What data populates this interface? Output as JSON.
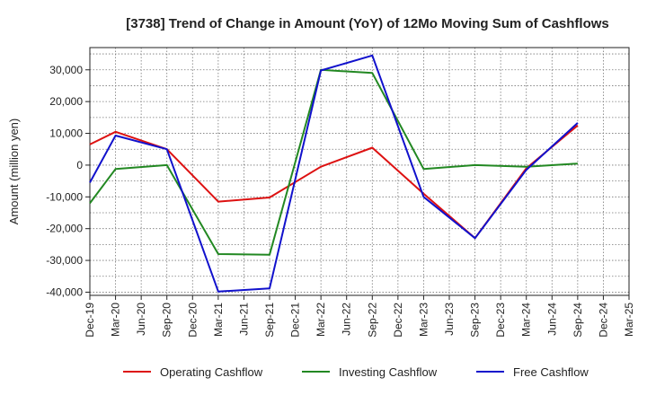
{
  "chart_data": {
    "type": "line",
    "title": "[3738]  Trend of Change in Amount (YoY) of 12Mo Moving Sum of Cashflows",
    "xlabel": "",
    "ylabel": "Amount (million yen)",
    "categories": [
      "Dec-19",
      "Mar-20",
      "Jun-20",
      "Sep-20",
      "Dec-20",
      "Mar-21",
      "Jun-21",
      "Sep-21",
      "Dec-21",
      "Mar-22",
      "Jun-22",
      "Sep-22",
      "Dec-22",
      "Mar-23",
      "Jun-23",
      "Sep-23",
      "Dec-23",
      "Mar-24",
      "Jun-24",
      "Sep-24",
      "Dec-24",
      "Mar-25"
    ],
    "ylim": [
      -41000,
      37000
    ],
    "yticks": [
      30000,
      20000,
      10000,
      0,
      -10000,
      -20000,
      -30000,
      -40000
    ],
    "ytick_labels": [
      "30,000",
      "20,000",
      "10,000",
      "0",
      "-10,000",
      "-20,000",
      "-30,000",
      "-40,000"
    ],
    "grid": true,
    "legend_position": "bottom",
    "series": [
      {
        "name": "Operating Cashflow",
        "color": "#dd1111",
        "values": [
          6500,
          10500,
          null,
          5000,
          null,
          -11500,
          null,
          -10200,
          null,
          -500,
          null,
          5500,
          null,
          -9000,
          null,
          -23000,
          null,
          -1000,
          null,
          12500,
          null,
          null
        ]
      },
      {
        "name": "Investing Cashflow",
        "color": "#228822",
        "values": [
          -12000,
          -1200,
          null,
          0,
          null,
          -28000,
          null,
          -28200,
          null,
          30000,
          null,
          29000,
          null,
          -1200,
          null,
          0,
          null,
          -500,
          null,
          500,
          null,
          null
        ]
      },
      {
        "name": "Free Cashflow",
        "color": "#1111cc",
        "values": [
          -5500,
          9300,
          null,
          5000,
          null,
          -39800,
          null,
          -38800,
          null,
          29800,
          null,
          34500,
          null,
          -10000,
          null,
          -23000,
          null,
          -1500,
          null,
          13300,
          null,
          null
        ]
      }
    ]
  }
}
